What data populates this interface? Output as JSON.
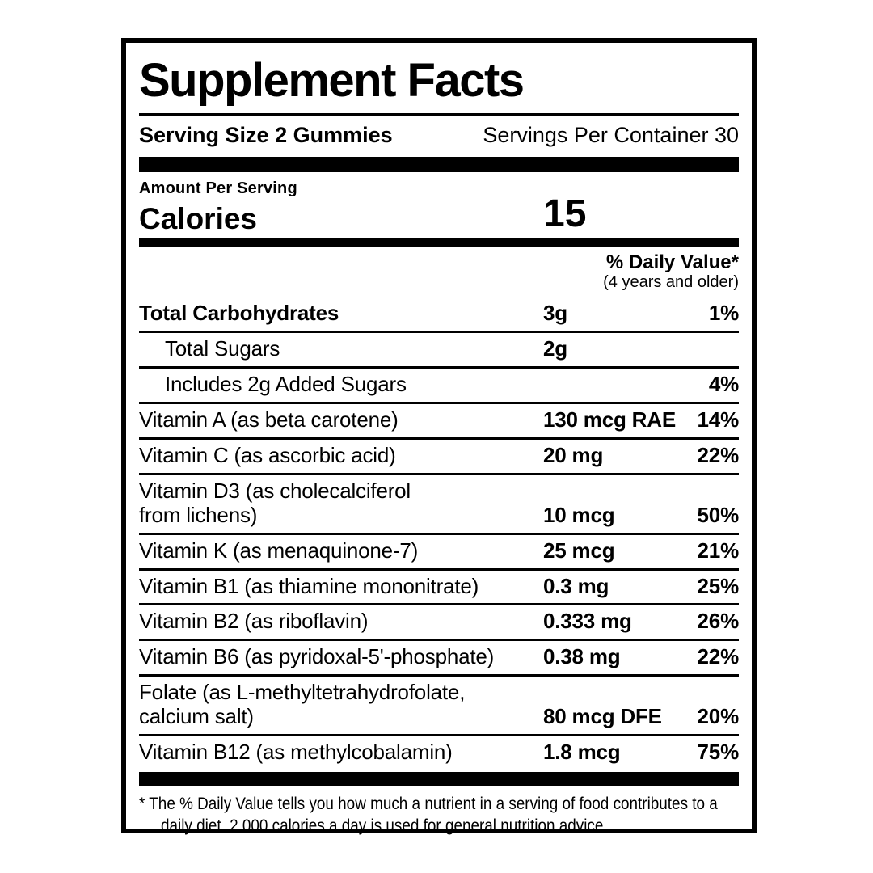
{
  "label": {
    "title": "Supplement Facts",
    "serving_size": "Serving Size 2 Gummies",
    "servings_per_container": "Servings Per Container 30",
    "amount_per_serving": "Amount Per Serving",
    "calories_label": "Calories",
    "calories_value": "15",
    "daily_value_header": "% Daily Value*",
    "daily_value_subheader": "(4 years and older)",
    "rows": [
      {
        "label": "Total Carbohydrates",
        "amount": "3g",
        "dv": "1%"
      },
      {
        "label": "Total Sugars",
        "amount": "2g",
        "dv": ""
      },
      {
        "label": "Includes 2g Added Sugars",
        "amount": "",
        "dv": "4%"
      },
      {
        "label": "Vitamin A (as beta carotene)",
        "amount": "130 mcg RAE",
        "dv": "14%"
      },
      {
        "label": "Vitamin C (as ascorbic acid)",
        "amount": "20 mg",
        "dv": "22%"
      },
      {
        "label": "Vitamin D3 (as cholecalciferol",
        "label2": "from lichens)",
        "amount": "10 mcg",
        "dv": "50%"
      },
      {
        "label": "Vitamin K (as menaquinone-7)",
        "amount": "25 mcg",
        "dv": "21%"
      },
      {
        "label": "Vitamin B1 (as thiamine mononitrate)",
        "amount": "0.3 mg",
        "dv": "25%"
      },
      {
        "label": "Vitamin B2 (as riboflavin)",
        "amount": "0.333 mg",
        "dv": "26%"
      },
      {
        "label": "Vitamin B6 (as pyridoxal-5'-phosphate)",
        "amount": "0.38 mg",
        "dv": "22%"
      },
      {
        "label": "Folate (as L-methyltetrahydrofolate,",
        "label2": "calcium salt)",
        "amount": "80 mcg DFE",
        "dv": "20%"
      },
      {
        "label": "Vitamin B12 (as methylcobalamin)",
        "amount": "1.8 mcg",
        "dv": "75%"
      }
    ],
    "footnote_line1": "* The % Daily Value tells you how much a nutrient in a serving of food contributes to a",
    "footnote_line2": "daily diet. 2,000 calories a day is used for general nutrition advice.",
    "colors": {
      "ink": "#000000",
      "background": "#ffffff"
    }
  }
}
